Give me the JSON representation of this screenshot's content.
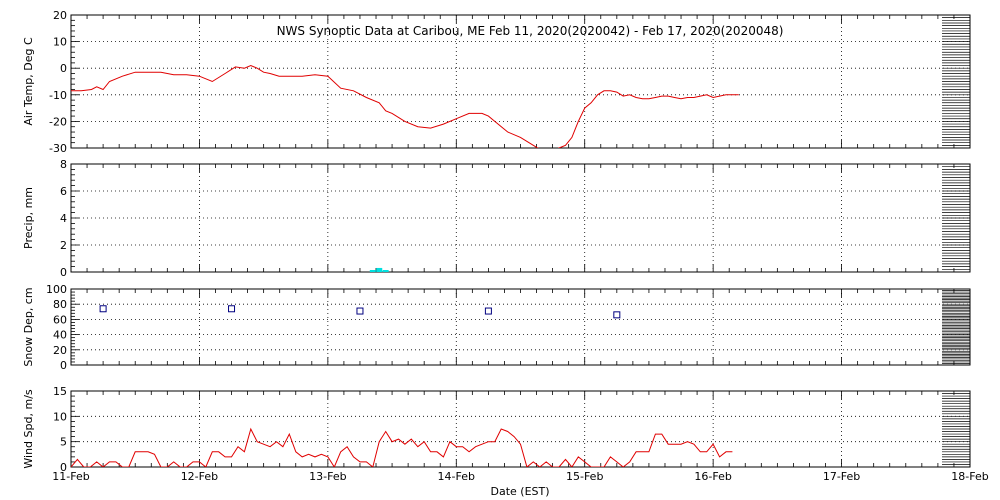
{
  "chart_data": {
    "type": "line",
    "title": "NWS Synoptic Data at Caribou, ME   Feb 11, 2020(2020042) - Feb 17, 2020(2020048)",
    "xlabel": "Date (EST)",
    "x_ticks": [
      "11-Feb",
      "12-Feb",
      "13-Feb",
      "14-Feb",
      "15-Feb",
      "16-Feb",
      "17-Feb",
      "18-Feb"
    ],
    "xlim": [
      0,
      7
    ],
    "grid": true,
    "colors": {
      "temp": "#e00000",
      "precip": "#00e0e0",
      "snow": "#000080",
      "wind": "#e00000",
      "grid": "#000000"
    },
    "panels": [
      {
        "id": "temp",
        "type": "line",
        "ylabel": "Air Temp, Deg C",
        "ylim": [
          -30,
          20
        ],
        "y_ticks": [
          20,
          10,
          0,
          -10,
          -20,
          -30
        ],
        "x": [
          0,
          0.08,
          0.16,
          0.2,
          0.25,
          0.3,
          0.4,
          0.5,
          0.6,
          0.7,
          0.8,
          0.9,
          1.0,
          1.1,
          1.2,
          1.28,
          1.35,
          1.4,
          1.45,
          1.5,
          1.55,
          1.62,
          1.7,
          1.8,
          1.9,
          2.0,
          2.1,
          2.2,
          2.3,
          2.4,
          2.45,
          2.5,
          2.6,
          2.7,
          2.8,
          2.9,
          3.0,
          3.1,
          3.2,
          3.25,
          3.3,
          3.4,
          3.5,
          3.6,
          3.7,
          3.8,
          3.85,
          3.9,
          3.95,
          4.0,
          4.05,
          4.1,
          4.15,
          4.2,
          4.25,
          4.3,
          4.35,
          4.4,
          4.45,
          4.5,
          4.55,
          4.6,
          4.65,
          4.7,
          4.75,
          4.8,
          4.85,
          4.9,
          4.95,
          5.0,
          5.1,
          5.2
        ],
        "y": [
          -8.5,
          -8.5,
          -8,
          -7,
          -8,
          -5,
          -3,
          -1.5,
          -1.5,
          -1.5,
          -2.5,
          -2.5,
          -3,
          -5,
          -2,
          0.5,
          0,
          1,
          0,
          -1.5,
          -2,
          -3,
          -3,
          -3,
          -2.5,
          -3,
          -7.5,
          -8.5,
          -11,
          -13,
          -16,
          -17,
          -20,
          -22,
          -22.5,
          -21,
          -19,
          -17,
          -17,
          -18,
          -20,
          -24,
          -26,
          -29,
          -32,
          -30,
          -29,
          -26,
          -20,
          -15,
          -13,
          -10,
          -8.5,
          -8.5,
          -9,
          -10.5,
          -10,
          -11,
          -11.5,
          -11.5,
          -11,
          -10.5,
          -10.5,
          -11,
          -11.5,
          -11,
          -11,
          -10.5,
          -10,
          -11,
          -10,
          -10
        ]
      },
      {
        "id": "precip",
        "type": "bar",
        "ylabel": "Precip, mm",
        "ylim": [
          0,
          8
        ],
        "y_ticks": [
          8,
          6,
          4,
          2,
          0
        ],
        "x": [
          2.35,
          2.4,
          2.45
        ],
        "values": [
          0.1,
          0.3,
          0.1
        ]
      },
      {
        "id": "snow",
        "type": "scatter",
        "ylabel": "Snow Dep, cm",
        "ylim": [
          0,
          100
        ],
        "y_ticks": [
          100,
          80,
          60,
          40,
          20,
          0
        ],
        "x": [
          0.25,
          1.25,
          2.25,
          3.25,
          4.25
        ],
        "y": [
          74,
          74,
          71,
          71,
          66
        ]
      },
      {
        "id": "wind",
        "type": "line",
        "ylabel": "Wind Spd, m/s",
        "ylim": [
          0,
          15
        ],
        "y_ticks": [
          15,
          10,
          5,
          0
        ],
        "x": [
          0,
          0.05,
          0.1,
          0.15,
          0.2,
          0.25,
          0.3,
          0.35,
          0.4,
          0.45,
          0.5,
          0.55,
          0.6,
          0.65,
          0.7,
          0.75,
          0.8,
          0.85,
          0.9,
          0.95,
          1.0,
          1.05,
          1.1,
          1.15,
          1.2,
          1.25,
          1.3,
          1.35,
          1.4,
          1.45,
          1.5,
          1.55,
          1.6,
          1.65,
          1.7,
          1.75,
          1.8,
          1.85,
          1.9,
          1.95,
          2.0,
          2.05,
          2.1,
          2.15,
          2.2,
          2.25,
          2.3,
          2.35,
          2.4,
          2.45,
          2.5,
          2.55,
          2.6,
          2.65,
          2.7,
          2.75,
          2.8,
          2.85,
          2.9,
          2.95,
          3.0,
          3.05,
          3.1,
          3.15,
          3.2,
          3.25,
          3.3,
          3.35,
          3.4,
          3.45,
          3.5,
          3.55,
          3.6,
          3.65,
          3.7,
          3.75,
          3.8,
          3.85,
          3.9,
          3.95,
          4.0,
          4.05,
          4.1,
          4.15,
          4.2,
          4.25,
          4.3,
          4.35,
          4.4,
          4.45,
          4.5,
          4.55,
          4.6,
          4.65,
          4.7,
          4.75,
          4.8,
          4.85,
          4.9,
          4.95,
          5.0,
          5.05,
          5.1,
          5.15
        ],
        "y": [
          0,
          1.5,
          0,
          0,
          1,
          0,
          1,
          1,
          0,
          0,
          3,
          3,
          3,
          2.5,
          0,
          0,
          1,
          0,
          0,
          1,
          1,
          0,
          3,
          3,
          2,
          2,
          4,
          3,
          7.5,
          5,
          4.5,
          4,
          5,
          4,
          6.5,
          3,
          2,
          2.5,
          2,
          2.5,
          2,
          0,
          3,
          4,
          2,
          1,
          1,
          0,
          5,
          7,
          5,
          5.5,
          4.5,
          5.5,
          4,
          5,
          3,
          3,
          2,
          5,
          4,
          4,
          3,
          4,
          4.5,
          5,
          5,
          7.5,
          7,
          6,
          4.5,
          0,
          1,
          0,
          1,
          0,
          0,
          1.5,
          0,
          2,
          1,
          0,
          0,
          0,
          2,
          1,
          0,
          1,
          3,
          3,
          3,
          6.5,
          6.5,
          4.5,
          4.5,
          4.5,
          5,
          4.5,
          3,
          3,
          4.5,
          2,
          3,
          3
        ]
      }
    ]
  }
}
